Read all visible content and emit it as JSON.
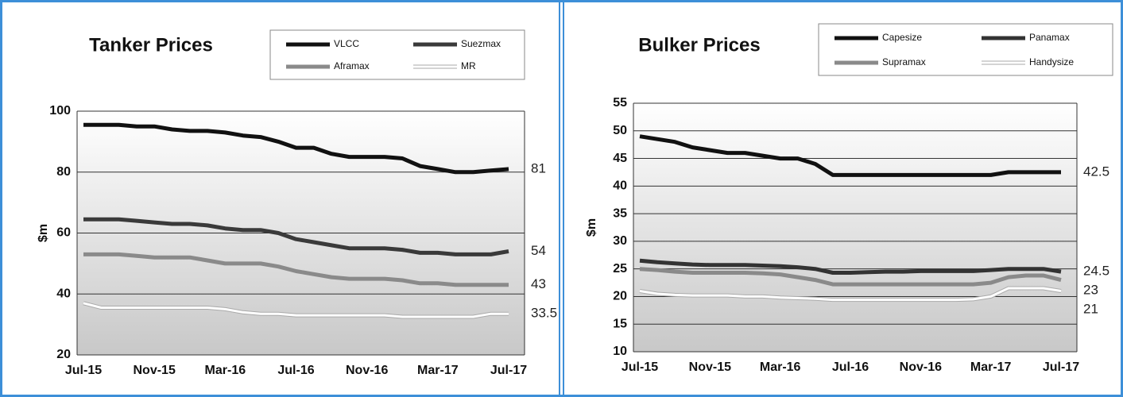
{
  "chart_data": [
    {
      "type": "line",
      "title": "Tanker Prices",
      "y_label": "$m",
      "categories": [
        "Jul-15",
        null,
        null,
        null,
        "Nov-15",
        null,
        null,
        null,
        "Mar-16",
        null,
        null,
        null,
        "Jul-16",
        null,
        null,
        null,
        "Nov-16",
        null,
        null,
        null,
        "Mar-17",
        null,
        null,
        null,
        "Jul-17"
      ],
      "ylim": [
        20,
        100
      ],
      "yticks": [
        20,
        40,
        60,
        80,
        100
      ],
      "grid": true,
      "series": [
        {
          "name": "VLCC",
          "color": "#111111",
          "end_value": 81,
          "values": [
            95.5,
            95.5,
            95.5,
            95,
            95,
            94,
            93.5,
            93.5,
            93,
            92,
            91.5,
            90,
            88,
            88,
            86,
            85,
            85,
            85,
            84.5,
            82,
            81,
            80,
            80,
            80.5,
            81
          ]
        },
        {
          "name": "Suezmax",
          "color": "#3a3a3a",
          "end_value": 54,
          "values": [
            64.5,
            64.5,
            64.5,
            64,
            63.5,
            63,
            63,
            62.5,
            61.5,
            61,
            61,
            60,
            58,
            57,
            56,
            55,
            55,
            55,
            54.5,
            53.5,
            53.5,
            53,
            53,
            53,
            54
          ]
        },
        {
          "name": "Aframax",
          "color": "#8a8a8a",
          "end_value": 43,
          "values": [
            53,
            53,
            53,
            52.5,
            52,
            52,
            52,
            51,
            50,
            50,
            50,
            49,
            47.5,
            46.5,
            45.5,
            45,
            45,
            45,
            44.5,
            43.5,
            43.5,
            43,
            43,
            43,
            43
          ]
        },
        {
          "name": "MR",
          "color": "#ffffff",
          "end_value": 33.5,
          "values": [
            37,
            35.5,
            35.5,
            35.5,
            35.5,
            35.5,
            35.5,
            35.5,
            35,
            34,
            33.5,
            33.5,
            33,
            33,
            33,
            33,
            33,
            33,
            32.5,
            32.5,
            32.5,
            32.5,
            32.5,
            33.5,
            33.5
          ]
        }
      ]
    },
    {
      "type": "line",
      "title": "Bulker Prices",
      "y_label": "$m",
      "categories": [
        "Jul-15",
        null,
        null,
        null,
        "Nov-15",
        null,
        null,
        null,
        "Mar-16",
        null,
        null,
        null,
        "Jul-16",
        null,
        null,
        null,
        "Nov-16",
        null,
        null,
        null,
        "Mar-17",
        null,
        null,
        null,
        "Jul-17"
      ],
      "ylim": [
        10,
        55
      ],
      "yticks": [
        10,
        15,
        20,
        25,
        30,
        35,
        40,
        45,
        50,
        55
      ],
      "grid": true,
      "series": [
        {
          "name": "Capesize",
          "color": "#111111",
          "end_value": 42.5,
          "values": [
            49,
            48.5,
            48,
            47,
            46.5,
            46,
            46,
            45.5,
            45,
            45,
            44,
            42,
            42,
            42,
            42,
            42,
            42,
            42,
            42,
            42,
            42,
            42.5,
            42.5,
            42.5,
            42.5
          ]
        },
        {
          "name": "Panamax",
          "color": "#333333",
          "end_value": 24.5,
          "values": [
            26.5,
            26.2,
            26,
            25.8,
            25.7,
            25.7,
            25.7,
            25.6,
            25.5,
            25.3,
            25,
            24.3,
            24.3,
            24.4,
            24.5,
            24.5,
            24.6,
            24.6,
            24.6,
            24.6,
            24.8,
            25,
            25,
            25,
            24.5
          ]
        },
        {
          "name": "Supramax",
          "color": "#8a8a8a",
          "end_value": 23,
          "values": [
            25,
            24.8,
            24.5,
            24.3,
            24.3,
            24.3,
            24.3,
            24.2,
            24,
            23.5,
            23,
            22.2,
            22.2,
            22.2,
            22.2,
            22.2,
            22.2,
            22.2,
            22.2,
            22.2,
            22.5,
            23.5,
            23.8,
            23.8,
            23
          ]
        },
        {
          "name": "Handysize",
          "color": "#ffffff",
          "end_value": 21,
          "values": [
            21,
            20.5,
            20.3,
            20.2,
            20.2,
            20.2,
            20,
            20,
            19.8,
            19.7,
            19.6,
            19.4,
            19.4,
            19.4,
            19.4,
            19.4,
            19.4,
            19.4,
            19.4,
            19.5,
            20,
            21.5,
            21.5,
            21.5,
            21
          ]
        }
      ]
    }
  ]
}
